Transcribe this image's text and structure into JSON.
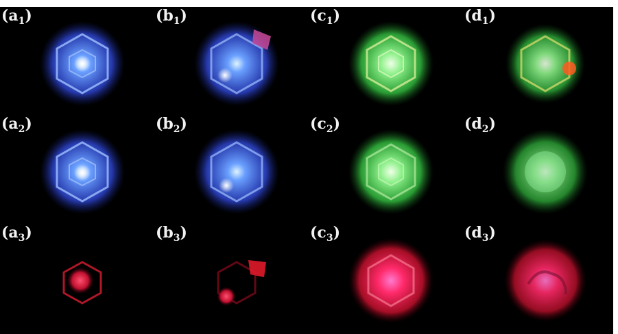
{
  "figure": {
    "panels": [
      {
        "id": "a1",
        "letter": "(a",
        "sub": "1",
        "close": ")",
        "color": "blue"
      },
      {
        "id": "b1",
        "letter": "(b",
        "sub": "1",
        "close": ")",
        "color": "blue"
      },
      {
        "id": "c1",
        "letter": "(c",
        "sub": "1",
        "close": ")",
        "color": "green"
      },
      {
        "id": "d1",
        "letter": "(d",
        "sub": "1",
        "close": ")",
        "color": "green"
      },
      {
        "id": "a2",
        "letter": "(a",
        "sub": "2",
        "close": ")",
        "color": "blue"
      },
      {
        "id": "b2",
        "letter": "(b",
        "sub": "2",
        "close": ")",
        "color": "blue"
      },
      {
        "id": "c2",
        "letter": "(c",
        "sub": "2",
        "close": ")",
        "color": "green"
      },
      {
        "id": "d2",
        "letter": "(d",
        "sub": "2",
        "close": ")",
        "color": "green"
      },
      {
        "id": "a3",
        "letter": "(a",
        "sub": "3",
        "close": ")",
        "color": "red"
      },
      {
        "id": "b3",
        "letter": "(b",
        "sub": "3",
        "close": ")",
        "color": "red"
      },
      {
        "id": "c3",
        "letter": "(c",
        "sub": "3",
        "close": ")",
        "color": "red"
      },
      {
        "id": "d3",
        "letter": "(d",
        "sub": "3",
        "close": ")",
        "color": "red"
      }
    ],
    "colors": {
      "background": "#000000",
      "blue": "#4a6cff",
      "green": "#4cd25a",
      "red": "#ff2a4a",
      "label": "#f2f2f2"
    }
  }
}
